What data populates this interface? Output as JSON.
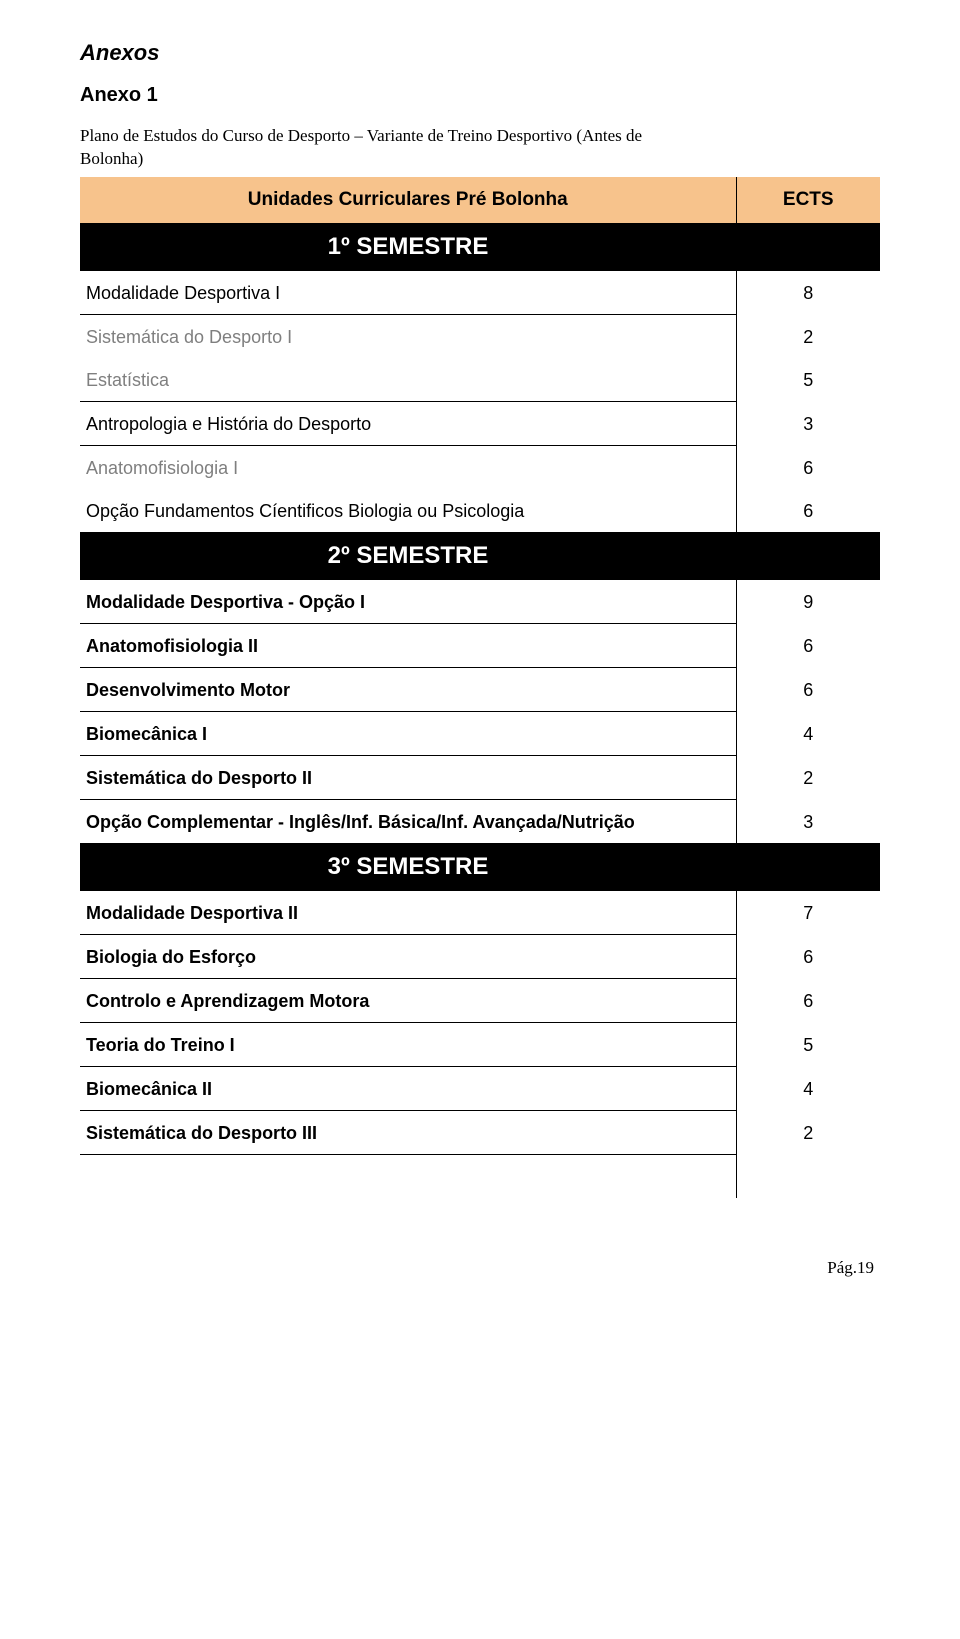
{
  "headings": {
    "anexos": "Anexos",
    "anexo1": "Anexo 1",
    "plano_line1": "Plano de Estudos do Curso de Desporto – Variante de Treino Desportivo (Antes de",
    "plano_line2": "Bolonha)"
  },
  "table_header": {
    "label": "Unidades Curriculares Pré Bolonha",
    "ects": "ECTS"
  },
  "semesters": {
    "s1": "1º SEMESTRE",
    "s2": "2º SEMESTRE",
    "s3": "3º SEMESTRE"
  },
  "rows": {
    "r1": {
      "label": "Modalidade Desportiva I",
      "val": "8"
    },
    "r2": {
      "label": "Sistemática do Desporto I",
      "val": "2"
    },
    "r3": {
      "label": "Estatística",
      "val": "5"
    },
    "r4": {
      "label": "Antropologia e História do Desporto",
      "val": "3"
    },
    "r5": {
      "label": "Anatomofisiologia I",
      "val": "6"
    },
    "r6": {
      "label": "Opção Fundamentos Cíentificos Biologia ou Psicologia",
      "val": "6"
    },
    "r7": {
      "label": "Modalidade Desportiva - Opção I",
      "val": "9"
    },
    "r8": {
      "label": "Anatomofisiologia II",
      "val": "6"
    },
    "r9": {
      "label": "Desenvolvimento Motor",
      "val": "6"
    },
    "r10": {
      "label": "Biomecânica I",
      "val": "4"
    },
    "r11": {
      "label": "Sistemática do Desporto II",
      "val": "2"
    },
    "r12": {
      "label": "Opção Complementar - Inglês/Inf. Básica/Inf. Avançada/Nutrição",
      "val": "3"
    },
    "r13": {
      "label": "Modalidade Desportiva II",
      "val": "7"
    },
    "r14": {
      "label": "Biologia do Esforço",
      "val": "6"
    },
    "r15": {
      "label": "Controlo e Aprendizagem Motora",
      "val": "6"
    },
    "r16": {
      "label": "Teoria do Treino I",
      "val": "5"
    },
    "r17": {
      "label": "Biomecânica II",
      "val": "4"
    },
    "r18": {
      "label": "Sistemática do Desporto III",
      "val": "2"
    }
  },
  "footer": "Pág.19",
  "colors": {
    "header_bg": "#f7c38c",
    "semester_bg": "#000000",
    "semester_text": "#ffffff",
    "grey_text": "#7f7f7f",
    "page_bg": "#ffffff"
  },
  "typography": {
    "heading_anexos_fontsize": 22,
    "heading_anexo1_fontsize": 20,
    "plano_fontsize": 17,
    "table_header_fontsize": 19,
    "semester_fontsize": 24,
    "row_fontsize": 18,
    "footer_fontsize": 17
  }
}
